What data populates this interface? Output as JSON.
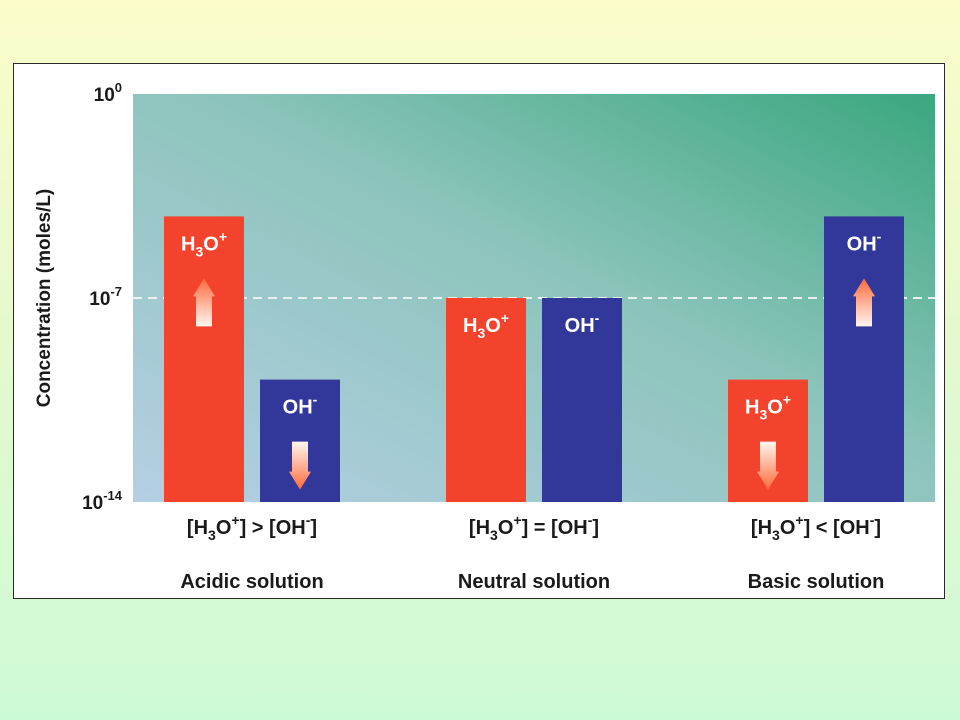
{
  "chart_data": {
    "type": "bar",
    "ylabel": "Concentration (moles/L)",
    "y_scale": "log",
    "ylim_exponent": [
      -14,
      0
    ],
    "y_ticks": [
      {
        "base": "10",
        "exp": "0",
        "value_exponent": 0
      },
      {
        "base": "10",
        "exp": "-7",
        "value_exponent": -7
      },
      {
        "base": "10",
        "exp": "-14",
        "value_exponent": -14
      }
    ],
    "reference_line_exponent": -7,
    "groups": [
      {
        "comparison": {
          "a1": "[H",
          "a2": "3",
          "a3": "O",
          "a4": "+",
          "a5": "]",
          "op": " > ",
          "b1": "[OH",
          "b2": "-",
          "b3": "]"
        },
        "name": "Acidic solution",
        "bars": [
          {
            "ion": "H3O+",
            "label": {
              "base": "H",
              "sub": "3",
              "mid": "O",
              "sup": "+"
            },
            "value_exponent": -4.2,
            "arrow": "up",
            "color": "#f4432c"
          },
          {
            "ion": "OH-",
            "label": {
              "base": "OH",
              "sub": "",
              "mid": "",
              "sup": "-"
            },
            "value_exponent": -9.8,
            "arrow": "down",
            "color": "#32389a"
          }
        ]
      },
      {
        "comparison": {
          "a1": "[H",
          "a2": "3",
          "a3": "O",
          "a4": "+",
          "a5": "]",
          "op": " = ",
          "b1": "[OH",
          "b2": "-",
          "b3": "]"
        },
        "name": "Neutral solution",
        "bars": [
          {
            "ion": "H3O+",
            "label": {
              "base": "H",
              "sub": "3",
              "mid": "O",
              "sup": "+"
            },
            "value_exponent": -7,
            "arrow": "none",
            "color": "#f4432c"
          },
          {
            "ion": "OH-",
            "label": {
              "base": "OH",
              "sub": "",
              "mid": "",
              "sup": "-"
            },
            "value_exponent": -7,
            "arrow": "none",
            "color": "#32389a"
          }
        ]
      },
      {
        "comparison": {
          "a1": "[H",
          "a2": "3",
          "a3": "O",
          "a4": "+",
          "a5": "]",
          "op": " < ",
          "b1": "[OH",
          "b2": "-",
          "b3": "]"
        },
        "name": "Basic solution",
        "bars": [
          {
            "ion": "H3O+",
            "label": {
              "base": "H",
              "sub": "3",
              "mid": "O",
              "sup": "+"
            },
            "value_exponent": -9.8,
            "arrow": "down",
            "color": "#f4432c"
          },
          {
            "ion": "OH-",
            "label": {
              "base": "OH",
              "sub": "",
              "mid": "",
              "sup": "-"
            },
            "value_exponent": -4.2,
            "arrow": "up",
            "color": "#32389a"
          }
        ]
      }
    ]
  }
}
